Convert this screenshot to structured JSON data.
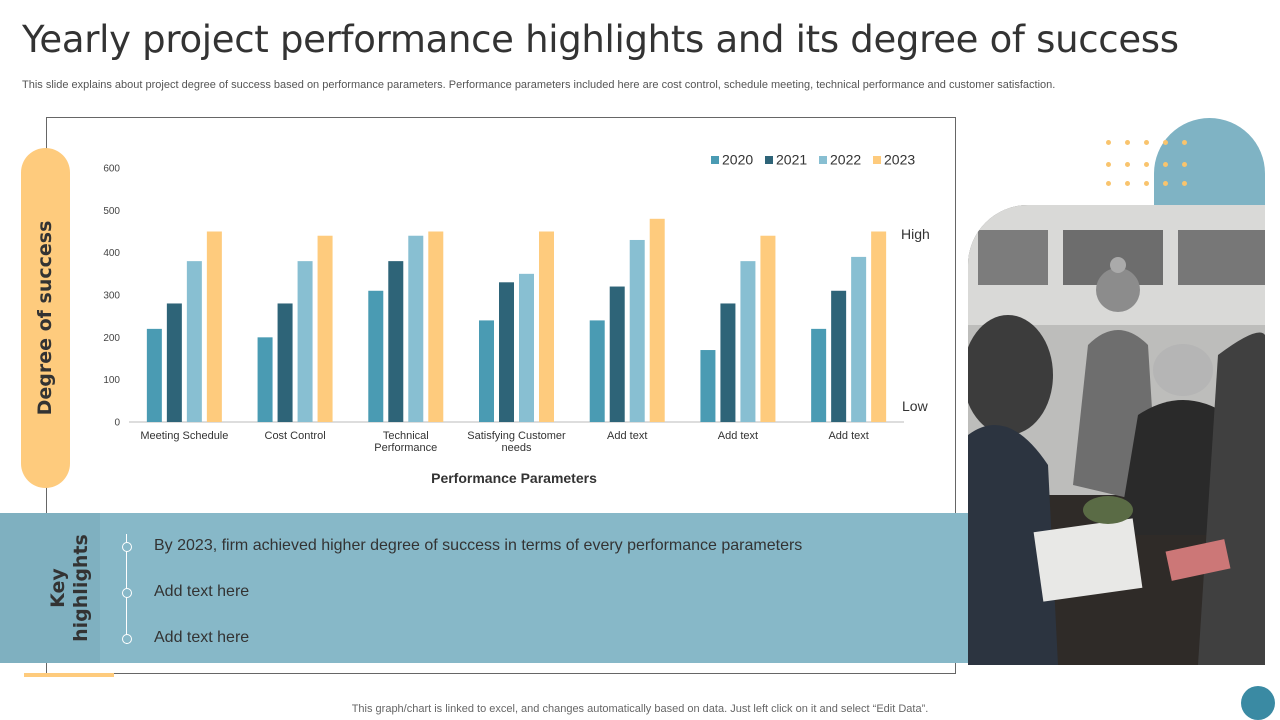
{
  "title": "Yearly project performance highlights and its degree of success",
  "subtitle": "This slide explains about project degree of success based on performance parameters. Performance parameters included here are cost control, schedule meeting, technical performance and customer satisfaction.",
  "y_pill_label": "Degree of success",
  "highlights": {
    "title": "Key\nhighlights",
    "items": [
      "By 2023, firm achieved higher degree of success in terms of every performance parameters",
      "Add text here",
      "Add text here"
    ]
  },
  "footer": "This graph/chart is linked to excel,  and changes automatically based on data. Just left click on it and select “Edit Data”.",
  "colors": {
    "series": [
      "#4A9BB3",
      "#2E6478",
      "#88BFD2",
      "#FECB7D"
    ],
    "pill": "#FECB7D",
    "highlight_band": "#87B8C8"
  },
  "chart_data": {
    "type": "bar",
    "categories": [
      "Meeting Schedule",
      "Cost Control",
      "Technical Performance",
      "Satisfying Customer needs",
      "Add text",
      "Add text",
      "Add text"
    ],
    "series": [
      {
        "name": "2020",
        "values": [
          220,
          200,
          310,
          240,
          240,
          170,
          220
        ]
      },
      {
        "name": "2021",
        "values": [
          280,
          280,
          380,
          330,
          320,
          280,
          310
        ]
      },
      {
        "name": "2022",
        "values": [
          380,
          380,
          440,
          350,
          430,
          380,
          390
        ]
      },
      {
        "name": "2023",
        "values": [
          450,
          440,
          450,
          450,
          480,
          440,
          450
        ]
      }
    ],
    "xlabel": "Performance Parameters",
    "ylabel": "",
    "ylim": [
      0,
      600
    ],
    "yticks": [
      0,
      100,
      200,
      300,
      400,
      500,
      600
    ],
    "legend_position": "top-right",
    "grid": false,
    "annotations": {
      "high": "High",
      "low": "Low"
    }
  }
}
